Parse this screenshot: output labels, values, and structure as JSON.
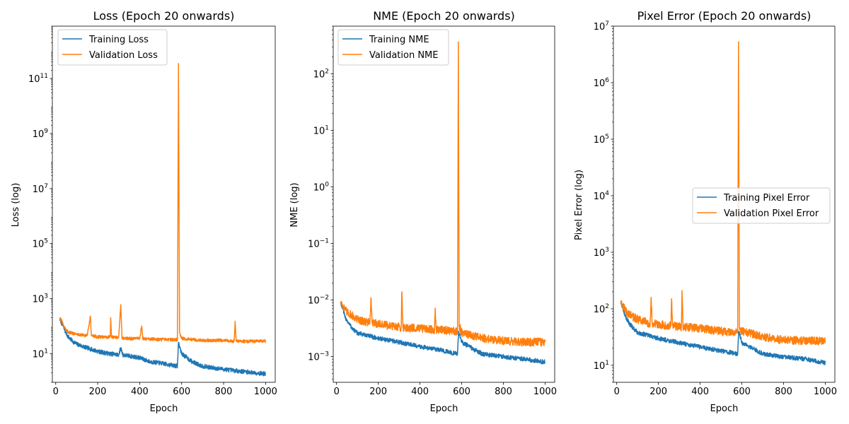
{
  "colors": {
    "training": "#1f77b4",
    "validation": "#ff7f0e"
  },
  "chart_data": [
    {
      "type": "line",
      "title": "Loss (Epoch 20 onwards)",
      "xlabel": "Epoch",
      "ylabel": "Loss (log)",
      "yscale": "log",
      "xlim": [
        -16,
        1046
      ],
      "ylim": [
        0.9,
        8000000000000
      ],
      "xticks": [
        0,
        200,
        400,
        600,
        800,
        1000
      ],
      "yticks": [
        {
          "base": "10",
          "exp": "1",
          "value": 10
        },
        {
          "base": "10",
          "exp": "3",
          "value": 1000
        },
        {
          "base": "10",
          "exp": "5",
          "value": 100000
        },
        {
          "base": "10",
          "exp": "7",
          "value": 10000000
        },
        {
          "base": "10",
          "exp": "9",
          "value": 1000000000
        },
        {
          "base": "10",
          "exp": "11",
          "value": 100000000000
        }
      ],
      "legend_position": "upper-left",
      "series": [
        {
          "name": "Training Loss",
          "color_key": "training",
          "points": [
            [
              20,
              180
            ],
            [
              30,
              120
            ],
            [
              40,
              80
            ],
            [
              50,
              55
            ],
            [
              60,
              40
            ],
            [
              80,
              28
            ],
            [
              100,
              22
            ],
            [
              150,
              16
            ],
            [
              200,
              12
            ],
            [
              250,
              10
            ],
            [
              300,
              9
            ],
            [
              310,
              16
            ],
            [
              320,
              9
            ],
            [
              400,
              7
            ],
            [
              450,
              5
            ],
            [
              500,
              4.5
            ],
            [
              550,
              3.8
            ],
            [
              580,
              3.5
            ],
            [
              585,
              25
            ],
            [
              600,
              10
            ],
            [
              650,
              5
            ],
            [
              700,
              3.5
            ],
            [
              750,
              3
            ],
            [
              800,
              2.7
            ],
            [
              850,
              2.4
            ],
            [
              900,
              2.2
            ],
            [
              950,
              2
            ],
            [
              1000,
              1.8
            ]
          ],
          "noise": 0.18
        },
        {
          "name": "Validation Loss",
          "color_key": "validation",
          "points": [
            [
              20,
              200
            ],
            [
              30,
              150
            ],
            [
              40,
              90
            ],
            [
              50,
              70
            ],
            [
              60,
              60
            ],
            [
              100,
              50
            ],
            [
              150,
              45
            ],
            [
              165,
              230
            ],
            [
              170,
              45
            ],
            [
              200,
              40
            ],
            [
              260,
              40
            ],
            [
              262,
              200
            ],
            [
              266,
              40
            ],
            [
              300,
              38
            ],
            [
              310,
              600
            ],
            [
              316,
              35
            ],
            [
              400,
              35
            ],
            [
              410,
              100
            ],
            [
              415,
              35
            ],
            [
              500,
              32
            ],
            [
              580,
              32
            ],
            [
              585,
              350000000000
            ],
            [
              590,
              60
            ],
            [
              600,
              35
            ],
            [
              700,
              30
            ],
            [
              800,
              30
            ],
            [
              850,
              28
            ],
            [
              855,
              150
            ],
            [
              860,
              28
            ],
            [
              950,
              28
            ],
            [
              1000,
              28
            ]
          ],
          "noise": 0.13
        }
      ]
    },
    {
      "type": "line",
      "title": "NME (Epoch 20 onwards)",
      "xlabel": "Epoch",
      "ylabel": "NME (log)",
      "yscale": "log",
      "xlim": [
        -16,
        1046
      ],
      "ylim": [
        0.00035,
        700
      ],
      "xticks": [
        0,
        200,
        400,
        600,
        800,
        1000
      ],
      "yticks": [
        {
          "base": "10",
          "exp": "−3",
          "value": 0.001
        },
        {
          "base": "10",
          "exp": "−2",
          "value": 0.01
        },
        {
          "base": "10",
          "exp": "−1",
          "value": 0.1
        },
        {
          "base": "10",
          "exp": "0",
          "value": 1
        },
        {
          "base": "10",
          "exp": "1",
          "value": 10
        },
        {
          "base": "10",
          "exp": "2",
          "value": 100
        }
      ],
      "legend_position": "upper-left",
      "series": [
        {
          "name": "Training NME",
          "color_key": "training",
          "points": [
            [
              20,
              0.009
            ],
            [
              30,
              0.007
            ],
            [
              40,
              0.005
            ],
            [
              60,
              0.0038
            ],
            [
              80,
              0.003
            ],
            [
              100,
              0.0026
            ],
            [
              200,
              0.0021
            ],
            [
              300,
              0.0018
            ],
            [
              400,
              0.0015
            ],
            [
              500,
              0.0013
            ],
            [
              580,
              0.0011
            ],
            [
              585,
              0.0028
            ],
            [
              600,
              0.0018
            ],
            [
              650,
              0.0014
            ],
            [
              700,
              0.0011
            ],
            [
              800,
              0.001
            ],
            [
              900,
              0.0009
            ],
            [
              1000,
              0.0008
            ]
          ],
          "noise": 0.09
        },
        {
          "name": "Validation NME",
          "color_key": "validation",
          "points": [
            [
              20,
              0.0095
            ],
            [
              30,
              0.008
            ],
            [
              50,
              0.006
            ],
            [
              70,
              0.0055
            ],
            [
              100,
              0.0045
            ],
            [
              160,
              0.004
            ],
            [
              165,
              0.011
            ],
            [
              170,
              0.004
            ],
            [
              250,
              0.0035
            ],
            [
              310,
              0.0033
            ],
            [
              313,
              0.014
            ],
            [
              318,
              0.0033
            ],
            [
              400,
              0.0031
            ],
            [
              470,
              0.003
            ],
            [
              473,
              0.0072
            ],
            [
              478,
              0.003
            ],
            [
              580,
              0.0028
            ],
            [
              584,
              370
            ],
            [
              588,
              0.0035
            ],
            [
              600,
              0.0026
            ],
            [
              700,
              0.0021
            ],
            [
              800,
              0.0019
            ],
            [
              900,
              0.0018
            ],
            [
              1000,
              0.0018
            ]
          ],
          "noise": 0.17
        }
      ]
    },
    {
      "type": "line",
      "title": "Pixel Error (Epoch 20 onwards)",
      "xlabel": "Epoch",
      "ylabel": "Pixel Error (log)",
      "yscale": "log",
      "xlim": [
        -16,
        1046
      ],
      "ylim": [
        5,
        10000000
      ],
      "xticks": [
        0,
        200,
        400,
        600,
        800,
        1000
      ],
      "yticks": [
        {
          "base": "10",
          "exp": "1",
          "value": 10
        },
        {
          "base": "10",
          "exp": "2",
          "value": 100
        },
        {
          "base": "10",
          "exp": "3",
          "value": 1000
        },
        {
          "base": "10",
          "exp": "4",
          "value": 10000
        },
        {
          "base": "10",
          "exp": "5",
          "value": 100000
        },
        {
          "base": "10",
          "exp": "6",
          "value": 1000000
        },
        {
          "base": "10",
          "exp": "7",
          "value": 10000000
        }
      ],
      "legend_position": "center-right",
      "series": [
        {
          "name": "Training Pixel Error",
          "color_key": "training",
          "points": [
            [
              20,
              130
            ],
            [
              30,
              100
            ],
            [
              40,
              75
            ],
            [
              60,
              55
            ],
            [
              80,
              45
            ],
            [
              100,
              38
            ],
            [
              200,
              30
            ],
            [
              300,
              25
            ],
            [
              400,
              21
            ],
            [
              500,
              18
            ],
            [
              580,
              16
            ],
            [
              585,
              40
            ],
            [
              600,
              25
            ],
            [
              650,
              20
            ],
            [
              700,
              16
            ],
            [
              800,
              14
            ],
            [
              900,
              13
            ],
            [
              1000,
              11
            ]
          ],
          "noise": 0.09
        },
        {
          "name": "Validation Pixel Error",
          "color_key": "validation",
          "points": [
            [
              20,
              140
            ],
            [
              30,
              110
            ],
            [
              50,
              85
            ],
            [
              70,
              75
            ],
            [
              100,
              65
            ],
            [
              160,
              55
            ],
            [
              165,
              160
            ],
            [
              170,
              55
            ],
            [
              260,
              50
            ],
            [
              263,
              150
            ],
            [
              268,
              50
            ],
            [
              310,
              48
            ],
            [
              313,
              210
            ],
            [
              318,
              48
            ],
            [
              400,
              45
            ],
            [
              500,
              40
            ],
            [
              580,
              38
            ],
            [
              584,
              5300000
            ],
            [
              588,
              50
            ],
            [
              600,
              40
            ],
            [
              700,
              32
            ],
            [
              800,
              28
            ],
            [
              900,
              27
            ],
            [
              1000,
              27
            ]
          ],
          "noise": 0.17
        }
      ]
    }
  ]
}
